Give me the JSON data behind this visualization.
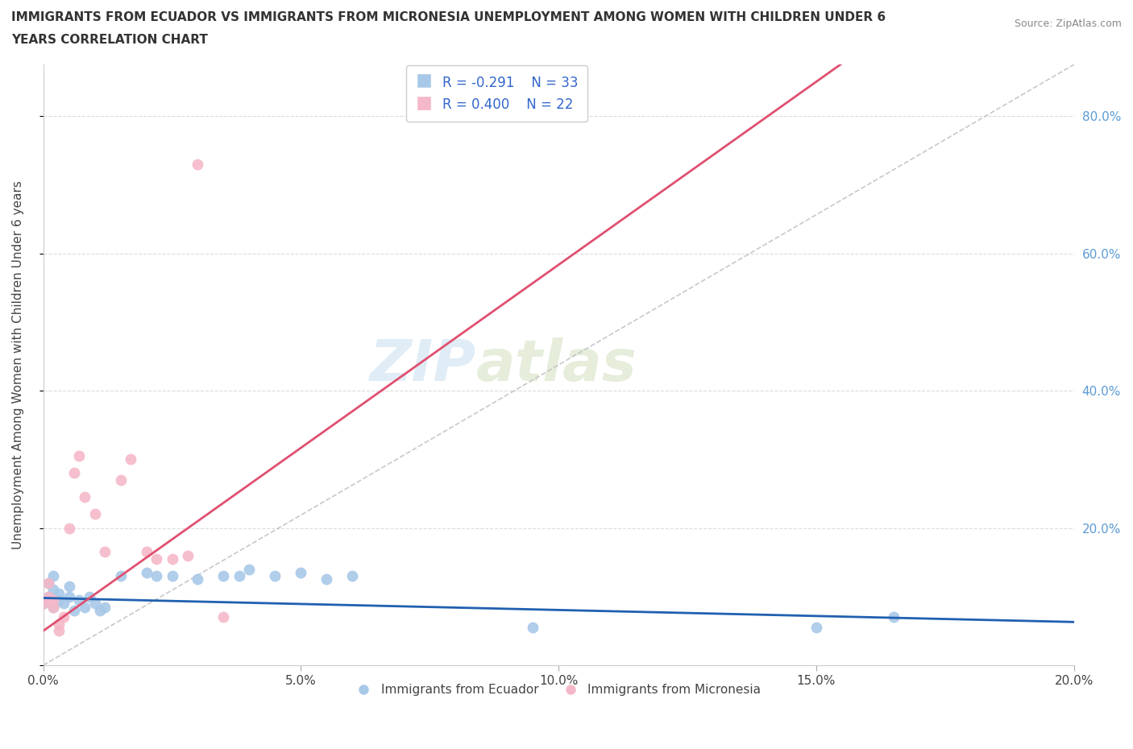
{
  "title_line1": "IMMIGRANTS FROM ECUADOR VS IMMIGRANTS FROM MICRONESIA UNEMPLOYMENT AMONG WOMEN WITH CHILDREN UNDER 6",
  "title_line2": "YEARS CORRELATION CHART",
  "source": "Source: ZipAtlas.com",
  "ylabel": "Unemployment Among Women with Children Under 6 years",
  "xlim": [
    0,
    0.2
  ],
  "ylim": [
    0,
    0.875
  ],
  "yticks": [
    0.0,
    0.2,
    0.4,
    0.6,
    0.8
  ],
  "xticks": [
    0.0,
    0.05,
    0.1,
    0.15,
    0.2
  ],
  "xtick_labels": [
    "0.0%",
    "5.0%",
    "10.0%",
    "15.0%",
    "20.0%"
  ],
  "ytick_labels": [
    "",
    "20.0%",
    "40.0%",
    "60.0%",
    "80.0%"
  ],
  "ecuador_color": "#a8c8e8",
  "micronesia_color": "#f5b8c8",
  "ecuador_line_color": "#2060b0",
  "micronesia_line_color": "#e05070",
  "ref_line_color": "#bbbbbb",
  "legend_r1": "R = -0.291",
  "legend_n1": "N = 33",
  "legend_r2": "R = 0.400",
  "legend_n2": "N = 22",
  "watermark_zip": "ZIP",
  "watermark_atlas": "atlas",
  "ecuador_x": [
    0.0,
    0.001,
    0.001,
    0.002,
    0.002,
    0.002,
    0.003,
    0.003,
    0.004,
    0.005,
    0.005,
    0.006,
    0.007,
    0.008,
    0.009,
    0.01,
    0.011,
    0.012,
    0.015,
    0.02,
    0.022,
    0.025,
    0.03,
    0.035,
    0.038,
    0.04,
    0.045,
    0.05,
    0.055,
    0.06,
    0.095,
    0.15,
    0.165
  ],
  "ecuador_y": [
    0.09,
    0.1,
    0.12,
    0.085,
    0.11,
    0.13,
    0.095,
    0.105,
    0.09,
    0.1,
    0.115,
    0.08,
    0.095,
    0.085,
    0.1,
    0.09,
    0.08,
    0.085,
    0.13,
    0.135,
    0.13,
    0.13,
    0.125,
    0.13,
    0.13,
    0.14,
    0.13,
    0.135,
    0.125,
    0.13,
    0.055,
    0.055,
    0.07
  ],
  "micronesia_x": [
    0.0,
    0.001,
    0.001,
    0.002,
    0.002,
    0.003,
    0.003,
    0.004,
    0.005,
    0.006,
    0.007,
    0.008,
    0.01,
    0.012,
    0.015,
    0.017,
    0.02,
    0.022,
    0.025,
    0.028,
    0.03,
    0.035
  ],
  "micronesia_y": [
    0.09,
    0.1,
    0.12,
    0.085,
    0.095,
    0.06,
    0.05,
    0.07,
    0.2,
    0.28,
    0.305,
    0.245,
    0.22,
    0.165,
    0.27,
    0.3,
    0.165,
    0.155,
    0.155,
    0.16,
    0.73,
    0.07
  ]
}
